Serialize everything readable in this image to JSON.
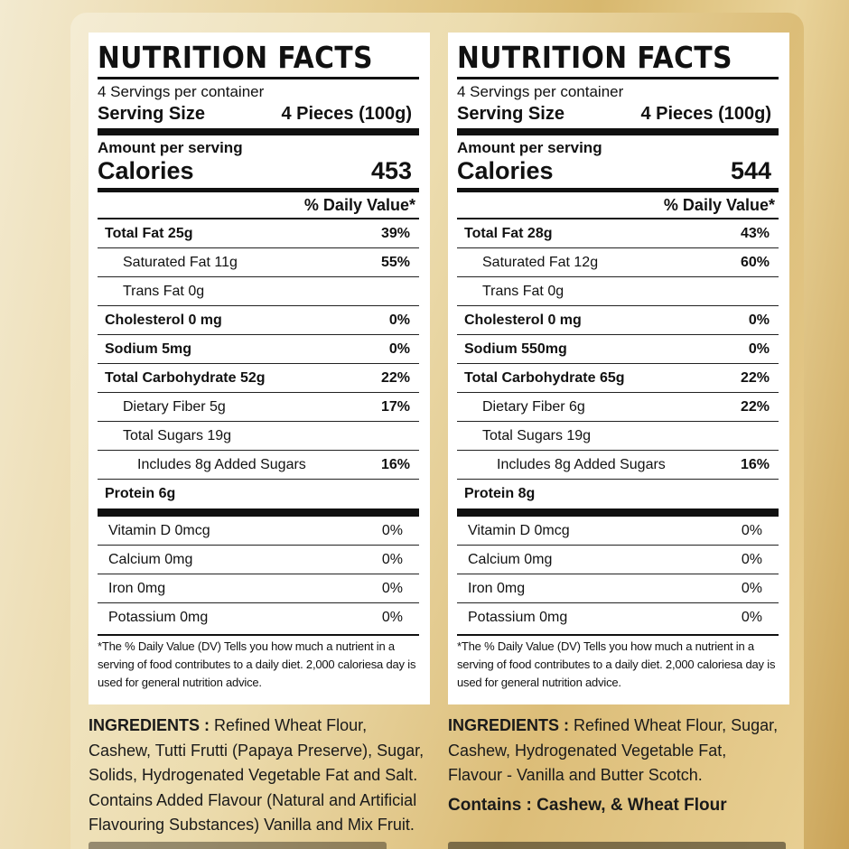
{
  "panels": [
    {
      "title": "NUTRITION FACTS",
      "servings": "4 Servings per container",
      "serving_size_label": "Serving Size",
      "serving_size_value": "4 Pieces (100g)",
      "amount_label": "Amount per serving",
      "calories_label": "Calories",
      "calories_value": "453",
      "dv_header": "% Daily Value*",
      "rows": [
        {
          "label": "Total Fat 25g",
          "pct": "39%"
        },
        {
          "label": "Saturated Fat 11g",
          "pct": "55%"
        },
        {
          "label": "Trans Fat 0g",
          "pct": ""
        },
        {
          "label": "Cholesterol 0 mg",
          "pct": "0%"
        },
        {
          "label": "Sodium 5mg",
          "pct": "0%"
        },
        {
          "label": "Total Carbohydrate 52g",
          "pct": "22%"
        },
        {
          "label": "Dietary Fiber 5g",
          "pct": "17%"
        },
        {
          "label": "Total Sugars 19g",
          "pct": ""
        },
        {
          "label": "Includes 8g Added Sugars",
          "pct": "16%"
        },
        {
          "label": "Protein 6g",
          "pct": ""
        }
      ],
      "vitamins": [
        {
          "label": "Vitamin D 0mcg",
          "pct": "0%"
        },
        {
          "label": "Calcium 0mg",
          "pct": "0%"
        },
        {
          "label": "Iron 0mg",
          "pct": "0%"
        },
        {
          "label": "Potassium 0mg",
          "pct": "0%"
        }
      ],
      "footnote": "*The % Daily Value (DV) Tells you how much a nutrient in a serving of food contributes to a daily diet. 2,000 caloriesa day is used for general nutrition advice."
    },
    {
      "title": "NUTRITION FACTS",
      "servings": "4 Servings per container",
      "serving_size_label": "Serving Size",
      "serving_size_value": "4 Pieces (100g)",
      "amount_label": "Amount per serving",
      "calories_label": "Calories",
      "calories_value": "544",
      "dv_header": "% Daily Value*",
      "rows": [
        {
          "label": "Total Fat 28g",
          "pct": "43%"
        },
        {
          "label": "Saturated Fat 12g",
          "pct": "60%"
        },
        {
          "label": "Trans Fat 0g",
          "pct": ""
        },
        {
          "label": "Cholesterol 0 mg",
          "pct": "0%"
        },
        {
          "label": "Sodium 550mg",
          "pct": "0%"
        },
        {
          "label": "Total Carbohydrate 65g",
          "pct": "22%"
        },
        {
          "label": "Dietary Fiber 6g",
          "pct": "22%"
        },
        {
          "label": "Total Sugars 19g",
          "pct": ""
        },
        {
          "label": "Includes 8g Added Sugars",
          "pct": "16%"
        },
        {
          "label": "Protein 8g",
          "pct": ""
        }
      ],
      "vitamins": [
        {
          "label": "Vitamin D 0mcg",
          "pct": "0%"
        },
        {
          "label": "Calcium 0mg",
          "pct": "0%"
        },
        {
          "label": "Iron 0mg",
          "pct": "0%"
        },
        {
          "label": "Potassium 0mg",
          "pct": "0%"
        }
      ],
      "footnote": "*The % Daily Value (DV) Tells you how much a nutrient in a serving of food contributes to a daily diet. 2,000 caloriesa day is used for general nutrition advice."
    }
  ],
  "ingredients_left": {
    "label": "INGREDIENTS :",
    "text": "Refined Wheat Flour, Cashew, Tutti Frutti (Papaya Preserve), Sugar, Solids, Hydrogenated Vegetable Fat and Salt. Contains Added Flavour (Natural and Artificial Flavouring Substances) Vanilla and Mix Fruit."
  },
  "ingredients_right": {
    "label": "INGREDIENTS :",
    "text": "Refined Wheat Flour, Sugar, Cashew, Hydrogenated Vegetable Fat, Flavour - Vanilla and Butter Scotch.",
    "contains": "Contains : Cashew, & Wheat Flour"
  }
}
